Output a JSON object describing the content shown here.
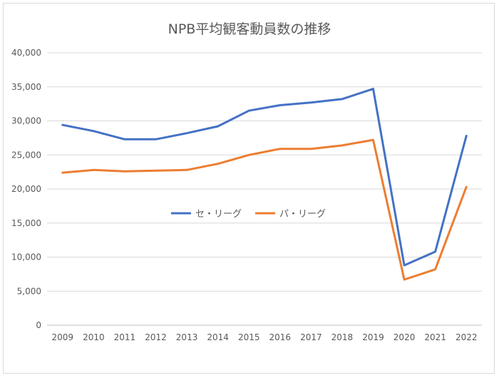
{
  "chart_data": {
    "type": "line",
    "title": "NPB平均観客動員数の推移",
    "xlabel": "",
    "ylabel": "",
    "categories": [
      "2009",
      "2010",
      "2011",
      "2012",
      "2013",
      "2014",
      "2015",
      "2016",
      "2017",
      "2018",
      "2019",
      "2020",
      "2021",
      "2022"
    ],
    "ylim": [
      0,
      40000
    ],
    "yticks": [
      0,
      5000,
      10000,
      15000,
      20000,
      25000,
      30000,
      35000,
      40000
    ],
    "ytick_labels": [
      "0",
      "5,000",
      "10,000",
      "15,000",
      "20,000",
      "25,000",
      "30,000",
      "35,000",
      "40,000"
    ],
    "grid": true,
    "legend_position": "center",
    "series": [
      {
        "name": "セ・リーグ",
        "color": "#4472c4",
        "values": [
          29400,
          28500,
          27300,
          27300,
          28200,
          29200,
          31500,
          32300,
          32700,
          33200,
          34700,
          8800,
          10800,
          27800
        ]
      },
      {
        "name": "パ・リーグ",
        "color": "#ed7d31",
        "values": [
          22400,
          22800,
          22600,
          22700,
          22800,
          23700,
          25000,
          25900,
          25900,
          26400,
          27200,
          6700,
          8200,
          20300
        ]
      }
    ]
  }
}
